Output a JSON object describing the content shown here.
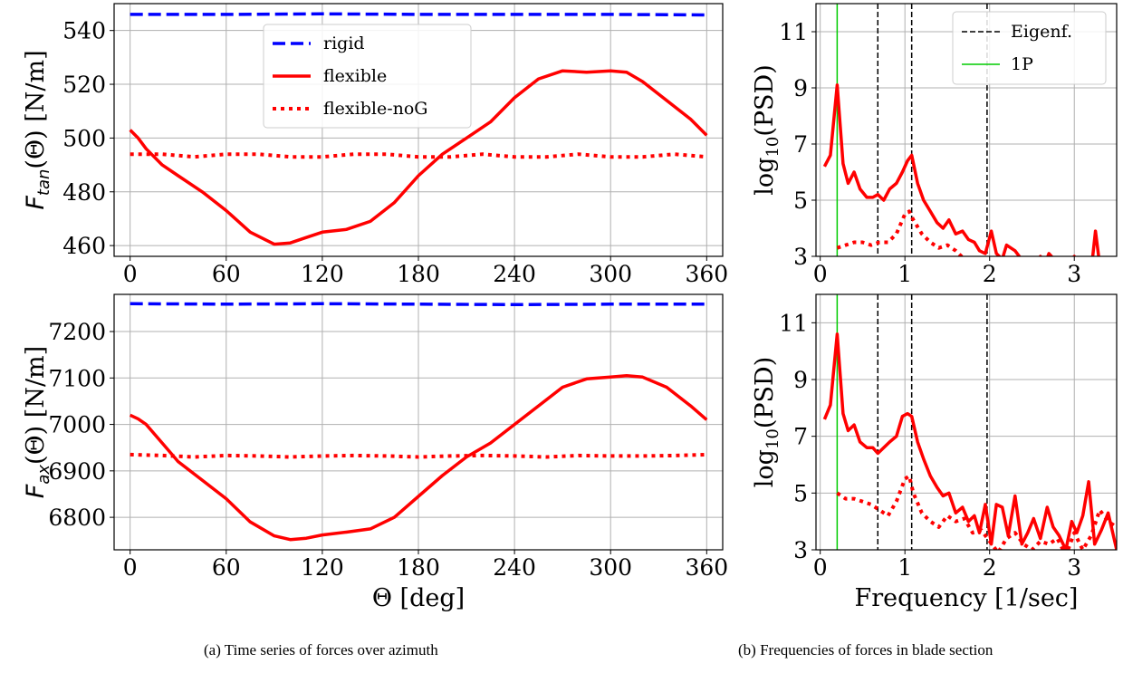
{
  "captions": {
    "a": "(a) Time series of forces over azimuth",
    "b": "(b) Frequencies of forces in blade section"
  },
  "colors": {
    "rigid": "#0000ff",
    "flexible": "#ff0000",
    "eigen": "#000000",
    "onep": "#00cc00",
    "grid": "#b0b0b0"
  },
  "chart_data": [
    {
      "id": "a-top",
      "type": "line",
      "ylabel_sym": "F",
      "ylabel_sub": "tan",
      "ylabel_rest": "(Θ) [N/m]",
      "xlim": [
        -10,
        370
      ],
      "ylim": [
        456,
        550
      ],
      "xticks": [
        0,
        60,
        120,
        180,
        240,
        300,
        360
      ],
      "yticks": [
        460,
        480,
        500,
        520,
        540
      ],
      "legend": {
        "position": "upper-center",
        "entries": [
          "rigid",
          "flexible",
          "flexible-noG"
        ]
      },
      "series": [
        {
          "name": "rigid",
          "style": "dashed",
          "x": [
            0,
            60,
            120,
            180,
            240,
            300,
            360
          ],
          "y": [
            546,
            546,
            546.2,
            546,
            546,
            546,
            545.8
          ]
        },
        {
          "name": "flexible",
          "style": "solid",
          "x": [
            0,
            5,
            10,
            20,
            30,
            45,
            60,
            75,
            90,
            100,
            110,
            120,
            135,
            150,
            165,
            180,
            195,
            210,
            225,
            240,
            255,
            270,
            285,
            300,
            310,
            320,
            335,
            350,
            360
          ],
          "y": [
            503,
            500,
            496,
            490,
            486,
            480,
            473,
            465,
            460.5,
            461,
            463,
            465,
            466,
            469,
            476,
            486,
            494,
            500,
            506,
            515,
            522,
            525,
            524.5,
            525,
            524.5,
            521,
            514,
            507,
            501
          ]
        },
        {
          "name": "flexible-noG",
          "style": "dotted",
          "x": [
            0,
            20,
            40,
            60,
            80,
            100,
            120,
            140,
            160,
            180,
            200,
            220,
            240,
            260,
            280,
            300,
            320,
            340,
            360
          ],
          "y": [
            494,
            494,
            493,
            494,
            494,
            493,
            493,
            494,
            494,
            493,
            493,
            494,
            493,
            493,
            494,
            493,
            493,
            494,
            493
          ]
        }
      ]
    },
    {
      "id": "a-bottom",
      "type": "line",
      "ylabel_sym": "F",
      "ylabel_sub": "ax",
      "ylabel_rest": "(Θ) [N/m]",
      "xlabel": "Θ [deg]",
      "xlim": [
        -10,
        370
      ],
      "ylim": [
        6730,
        7280
      ],
      "xticks": [
        0,
        60,
        120,
        180,
        240,
        300,
        360
      ],
      "yticks": [
        6800,
        6900,
        7000,
        7100,
        7200
      ],
      "series": [
        {
          "name": "rigid",
          "style": "dashed",
          "x": [
            0,
            60,
            120,
            180,
            240,
            300,
            360
          ],
          "y": [
            7260,
            7259,
            7260,
            7259,
            7258,
            7259,
            7259
          ]
        },
        {
          "name": "flexible",
          "style": "solid",
          "x": [
            0,
            5,
            10,
            20,
            30,
            45,
            60,
            75,
            90,
            100,
            110,
            120,
            135,
            150,
            165,
            180,
            195,
            210,
            225,
            240,
            255,
            270,
            285,
            300,
            310,
            320,
            335,
            350,
            360
          ],
          "y": [
            7020,
            7012,
            7000,
            6960,
            6920,
            6880,
            6840,
            6790,
            6760,
            6752,
            6755,
            6762,
            6768,
            6775,
            6800,
            6845,
            6890,
            6930,
            6960,
            7000,
            7040,
            7080,
            7098,
            7102,
            7105,
            7102,
            7080,
            7040,
            7010
          ]
        },
        {
          "name": "flexible-noG",
          "style": "dotted",
          "x": [
            0,
            20,
            40,
            60,
            80,
            100,
            120,
            140,
            160,
            180,
            200,
            220,
            240,
            260,
            280,
            300,
            320,
            340,
            360
          ],
          "y": [
            6935,
            6933,
            6930,
            6933,
            6932,
            6930,
            6932,
            6933,
            6932,
            6930,
            6932,
            6933,
            6932,
            6930,
            6933,
            6932,
            6932,
            6933,
            6935
          ]
        }
      ]
    },
    {
      "id": "b-top",
      "type": "line",
      "ylabel": "log10(PSD)",
      "xlim": [
        -0.05,
        3.5
      ],
      "ylim": [
        3,
        12
      ],
      "xticks": [
        0,
        1,
        2,
        3
      ],
      "yticks": [
        3,
        5,
        7,
        9,
        11
      ],
      "legend": {
        "position": "upper-right",
        "entries": [
          "Eigenf.",
          "1P"
        ]
      },
      "vlines_eigen": [
        0.68,
        1.08,
        1.97
      ],
      "vline_1p": 0.2,
      "series": [
        {
          "name": "flexible",
          "style": "solid",
          "x": [
            0.05,
            0.12,
            0.2,
            0.27,
            0.33,
            0.4,
            0.47,
            0.55,
            0.62,
            0.68,
            0.75,
            0.82,
            0.9,
            0.97,
            1.03,
            1.08,
            1.15,
            1.22,
            1.3,
            1.38,
            1.45,
            1.52,
            1.6,
            1.68,
            1.75,
            1.82,
            1.88,
            1.95,
            2.02,
            2.08,
            2.15,
            2.2,
            2.3,
            2.4,
            2.5,
            2.6,
            2.65,
            2.7,
            2.85,
            3.0,
            3.1,
            3.2,
            3.25,
            3.3,
            3.4
          ],
          "y": [
            6.2,
            6.6,
            9.1,
            6.3,
            5.6,
            6.0,
            5.4,
            5.1,
            5.1,
            5.2,
            5.0,
            5.4,
            5.6,
            6.0,
            6.4,
            6.6,
            5.6,
            5.0,
            4.6,
            4.2,
            4.0,
            4.3,
            3.8,
            3.9,
            3.6,
            3.5,
            3.2,
            3.1,
            3.9,
            3.1,
            2.9,
            3.4,
            3.2,
            2.8,
            2.6,
            3.0,
            2.7,
            3.1,
            2.6,
            3.0,
            2.6,
            2.5,
            3.9,
            2.7,
            2.6
          ]
        },
        {
          "name": "flexible-noG",
          "style": "dotted",
          "x": [
            0.2,
            0.3,
            0.4,
            0.5,
            0.6,
            0.7,
            0.8,
            0.9,
            1.0,
            1.05,
            1.1,
            1.2,
            1.3,
            1.4,
            1.5,
            1.6,
            1.7
          ],
          "y": [
            3.3,
            3.4,
            3.5,
            3.5,
            3.4,
            3.5,
            3.5,
            3.8,
            4.5,
            4.6,
            4.3,
            3.8,
            3.5,
            3.3,
            3.4,
            3.2,
            2.9
          ]
        }
      ]
    },
    {
      "id": "b-bottom",
      "type": "line",
      "ylabel": "log10(PSD)",
      "xlabel": "Frequency [1/sec]",
      "xlim": [
        -0.05,
        3.5
      ],
      "ylim": [
        3,
        12
      ],
      "xticks": [
        0,
        1,
        2,
        3
      ],
      "yticks": [
        3,
        5,
        7,
        9,
        11
      ],
      "vlines_eigen": [
        0.68,
        1.08,
        1.97
      ],
      "vline_1p": 0.2,
      "series": [
        {
          "name": "flexible",
          "style": "solid",
          "x": [
            0.05,
            0.12,
            0.2,
            0.27,
            0.33,
            0.4,
            0.47,
            0.55,
            0.62,
            0.68,
            0.75,
            0.82,
            0.9,
            0.97,
            1.03,
            1.08,
            1.15,
            1.22,
            1.3,
            1.38,
            1.45,
            1.52,
            1.6,
            1.68,
            1.75,
            1.82,
            1.88,
            1.95,
            2.02,
            2.08,
            2.15,
            2.22,
            2.3,
            2.38,
            2.45,
            2.52,
            2.6,
            2.68,
            2.75,
            2.82,
            2.9,
            2.97,
            3.03,
            3.1,
            3.17,
            3.24,
            3.32,
            3.4,
            3.5
          ],
          "y": [
            7.6,
            8.1,
            10.6,
            7.8,
            7.2,
            7.4,
            6.8,
            6.6,
            6.6,
            6.4,
            6.6,
            6.8,
            7.0,
            7.7,
            7.8,
            7.7,
            6.8,
            6.2,
            5.6,
            5.2,
            4.9,
            5.0,
            4.3,
            4.5,
            4.0,
            4.2,
            3.6,
            4.6,
            3.2,
            4.6,
            4.5,
            3.5,
            4.9,
            3.2,
            3.6,
            4.1,
            3.4,
            4.5,
            3.8,
            3.5,
            3.0,
            4.0,
            3.6,
            4.2,
            5.4,
            3.2,
            3.7,
            4.3,
            3.0
          ]
        },
        {
          "name": "flexible-noG",
          "style": "dotted",
          "x": [
            0.2,
            0.3,
            0.4,
            0.5,
            0.6,
            0.7,
            0.8,
            0.9,
            1.0,
            1.05,
            1.1,
            1.2,
            1.3,
            1.4,
            1.5,
            1.6,
            1.7,
            1.8,
            1.9,
            2.0,
            2.1,
            2.2,
            2.3,
            2.4,
            2.5,
            2.6,
            2.7,
            2.8,
            2.9,
            3.0,
            3.1,
            3.2,
            3.3,
            3.4,
            3.5
          ],
          "y": [
            5.0,
            4.8,
            4.8,
            4.7,
            4.6,
            4.4,
            4.2,
            4.7,
            5.5,
            5.6,
            5.0,
            4.3,
            4.0,
            3.8,
            4.2,
            4.0,
            4.1,
            3.6,
            3.7,
            3.3,
            2.9,
            3.4,
            3.6,
            3.2,
            3.0,
            3.3,
            3.2,
            3.4,
            2.8,
            3.6,
            3.0,
            3.5,
            4.4,
            4.0,
            3.8
          ]
        }
      ]
    }
  ]
}
